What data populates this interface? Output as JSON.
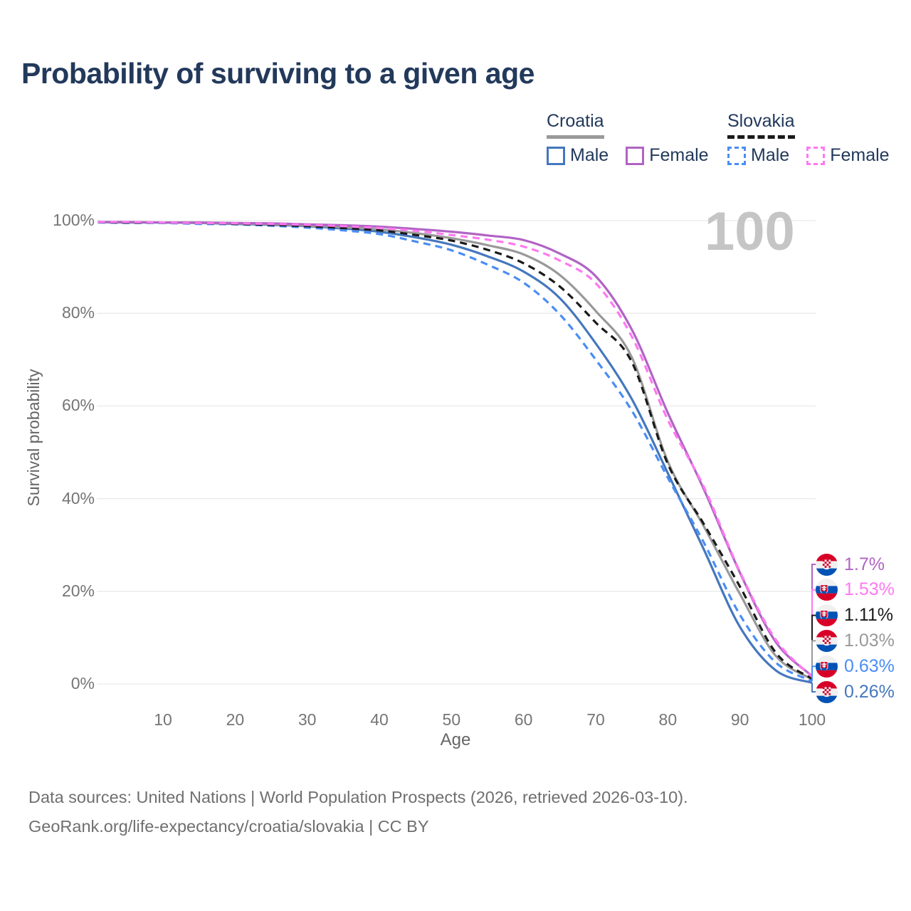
{
  "title": "Probability of surviving to a given age",
  "watermark": "100",
  "legend": {
    "groups": [
      {
        "name": "Croatia",
        "line_style": "solid",
        "line_color": "#999999",
        "items": [
          {
            "label": "Male",
            "color": "#4577bd"
          },
          {
            "label": "Female",
            "color": "#b163c4"
          }
        ]
      },
      {
        "name": "Slovakia",
        "line_style": "dashed",
        "line_color": "#1a1a1a",
        "items": [
          {
            "label": "Male",
            "color": "#4a8df5"
          },
          {
            "label": "Female",
            "color": "#ff78f0"
          }
        ]
      }
    ]
  },
  "chart_data": {
    "type": "line",
    "title": "Probability of surviving to a given age",
    "xlabel": "Age",
    "ylabel": "Survival probability",
    "xlim": [
      0,
      100
    ],
    "ylim": [
      0,
      100
    ],
    "grid": "horizontal",
    "legend_position": "top-right",
    "annotation": "100",
    "x_ticks": [
      10,
      20,
      30,
      40,
      50,
      60,
      70,
      80,
      90,
      100
    ],
    "y_ticks": [
      {
        "value": 0,
        "label": "0%"
      },
      {
        "value": 20,
        "label": "20%"
      },
      {
        "value": 40,
        "label": "40%"
      },
      {
        "value": 60,
        "label": "60%"
      },
      {
        "value": 80,
        "label": "80%"
      },
      {
        "value": 100,
        "label": "100%"
      }
    ],
    "ages": [
      1,
      5,
      10,
      15,
      20,
      25,
      30,
      35,
      40,
      45,
      50,
      55,
      60,
      65,
      70,
      75,
      80,
      85,
      90,
      95,
      100
    ],
    "series": [
      {
        "name": "Croatia Male",
        "country": "Croatia",
        "sex": "Male",
        "style": "solid",
        "color": "#4577bd",
        "end_label": "0.26%",
        "values": [
          99.7,
          99.6,
          99.6,
          99.5,
          99.3,
          99.1,
          98.8,
          98.3,
          97.6,
          96.4,
          94.8,
          92.3,
          89.0,
          83.3,
          73.5,
          61.5,
          45.5,
          29.0,
          12.3,
          2.9,
          0.26
        ]
      },
      {
        "name": "Croatia",
        "country": "Croatia",
        "sex": "All",
        "style": "solid",
        "color": "#999999",
        "end_label": "1.03%",
        "values": [
          99.7,
          99.6,
          99.6,
          99.5,
          99.4,
          99.2,
          98.9,
          98.6,
          98.1,
          97.3,
          96.2,
          94.7,
          92.7,
          88.3,
          80.5,
          70.5,
          48.0,
          34.0,
          19.4,
          6.0,
          1.03
        ]
      },
      {
        "name": "Croatia Female",
        "country": "Croatia",
        "sex": "Female",
        "style": "solid",
        "color": "#b163c4",
        "end_label": "1.7%",
        "values": [
          99.7,
          99.7,
          99.6,
          99.6,
          99.5,
          99.4,
          99.2,
          99.0,
          98.7,
          98.2,
          97.6,
          96.8,
          95.8,
          92.9,
          88.0,
          76.5,
          58.5,
          42.0,
          24.0,
          9.0,
          1.7
        ]
      },
      {
        "name": "Slovakia Male",
        "country": "Slovakia",
        "sex": "Male",
        "style": "dashed",
        "color": "#4a8df5",
        "end_label": "0.63%",
        "values": [
          99.6,
          99.5,
          99.5,
          99.3,
          99.2,
          98.9,
          98.5,
          97.9,
          97.1,
          95.5,
          93.6,
          90.5,
          86.6,
          79.8,
          70.0,
          59.0,
          44.5,
          30.5,
          14.9,
          4.6,
          0.63
        ]
      },
      {
        "name": "Slovakia",
        "country": "Slovakia",
        "sex": "All",
        "style": "dashed",
        "color": "#1a1a1a",
        "end_label": "1.11%",
        "values": [
          99.7,
          99.6,
          99.6,
          99.5,
          99.3,
          99.1,
          98.8,
          98.4,
          97.9,
          96.9,
          95.7,
          93.7,
          90.8,
          85.8,
          78.0,
          69.5,
          47.5,
          34.5,
          21.0,
          6.7,
          1.11
        ]
      },
      {
        "name": "Slovakia Female",
        "country": "Slovakia",
        "sex": "Female",
        "style": "dashed",
        "color": "#ff78f0",
        "end_label": "1.53%",
        "values": [
          99.7,
          99.7,
          99.6,
          99.5,
          99.4,
          99.3,
          99.1,
          98.8,
          98.4,
          97.8,
          96.9,
          95.9,
          94.4,
          91.4,
          86.5,
          75.0,
          57.0,
          42.5,
          24.2,
          9.5,
          1.53
        ]
      }
    ],
    "end_labels": [
      {
        "text": "1.7%",
        "series": "Croatia Female",
        "flag": "croatia"
      },
      {
        "text": "1.53%",
        "series": "Slovakia Female",
        "flag": "slovakia"
      },
      {
        "text": "1.11%",
        "series": "Slovakia",
        "flag": "slovakia"
      },
      {
        "text": "1.03%",
        "series": "Croatia",
        "flag": "croatia"
      },
      {
        "text": "0.63%",
        "series": "Slovakia Male",
        "flag": "slovakia"
      },
      {
        "text": "0.26%",
        "series": "Croatia Male",
        "flag": "croatia"
      }
    ]
  },
  "footer": {
    "line1": "Data sources: United Nations | World Population Prospects (2026, retrieved 2026-03-10).",
    "line2": "GeoRank.org/life-expectancy/croatia/slovakia | CC BY"
  }
}
